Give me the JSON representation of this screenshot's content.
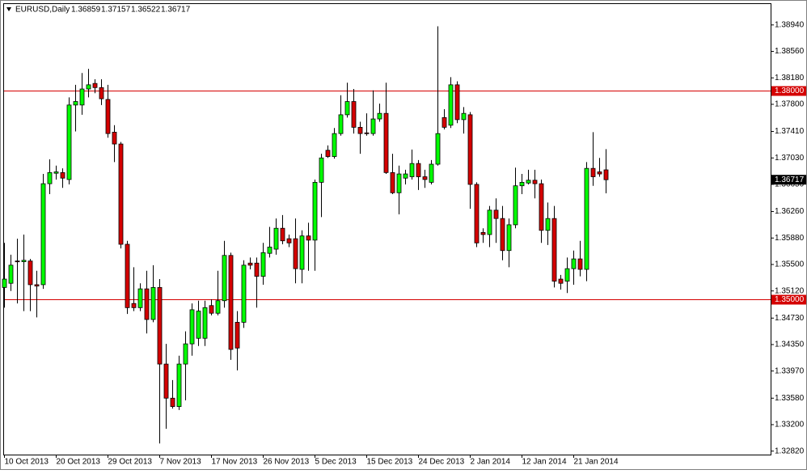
{
  "chart_data": {
    "type": "candlestick",
    "symbol": "EURUSD,Daily",
    "categories": [
      "10 Oct 2013",
      null,
      null,
      null,
      null,
      null,
      null,
      null,
      "20 Oct 2013",
      null,
      null,
      null,
      null,
      null,
      null,
      null,
      "29 Oct 2013",
      null,
      null,
      null,
      null,
      null,
      null,
      null,
      "7 Nov 2013",
      null,
      null,
      null,
      null,
      null,
      null,
      null,
      "17 Nov 2013",
      null,
      null,
      null,
      null,
      null,
      null,
      null,
      "26 Nov 2013",
      null,
      null,
      null,
      null,
      null,
      null,
      null,
      "5 Dec 2013",
      null,
      null,
      null,
      null,
      null,
      null,
      null,
      "15 Dec 2013",
      null,
      null,
      null,
      null,
      null,
      null,
      null,
      "24 Dec 2013",
      null,
      null,
      null,
      null,
      null,
      null,
      null,
      "2 Jan 2014",
      null,
      null,
      null,
      null,
      null,
      null,
      null,
      "12 Jan 2014",
      null,
      null,
      null,
      null,
      null,
      null,
      null,
      "21 Jan 2014",
      null,
      null,
      null,
      null,
      null
    ],
    "open": [
      1.3517,
      1.3523,
      1.3555,
      1.3554,
      1.3555,
      1.3521,
      1.3521,
      1.3666,
      1.3681,
      1.3682,
      1.3672,
      1.3779,
      1.3779,
      1.3802,
      1.381,
      1.3804,
      1.3787,
      1.374,
      1.3723,
      1.3579,
      1.3494,
      1.3488,
      1.3515,
      1.3471,
      1.3517,
      1.3407,
      1.3358,
      1.3346,
      1.3407,
      1.3436,
      1.3444,
      1.3444,
      1.3491,
      1.348,
      1.3498,
      1.3563,
      1.3467,
      1.3467,
      1.3552,
      1.3552,
      1.3533,
      1.3566,
      1.3572,
      1.3602,
      1.3587,
      1.3587,
      1.3543,
      1.3591,
      1.3585,
      1.3668,
      1.3714,
      1.3705,
      1.3738,
      1.3765,
      1.3784,
      1.3747,
      1.3739,
      1.3738,
      1.3759,
      1.3767,
      1.3682,
      1.3653,
      1.3674,
      1.3676,
      1.3695,
      1.3676,
      1.3668,
      1.3694,
      1.3761,
      1.375,
      1.3808,
      1.3758,
      1.3765,
      1.3665,
      1.3596,
      1.3593,
      1.3628,
      1.3616,
      1.357,
      1.3607,
      1.3663,
      1.3667,
      1.3671,
      1.3666,
      1.3599,
      1.3616,
      1.3529,
      1.3526,
      1.3544,
      1.3558,
      1.3543,
      1.3688,
      1.3683,
      1.36859
    ],
    "high": [
      1.3581,
      1.3564,
      1.3587,
      1.3593,
      1.3558,
      1.3541,
      1.368,
      1.3701,
      1.3692,
      1.3688,
      1.379,
      1.3808,
      1.3825,
      1.3831,
      1.3816,
      1.3816,
      1.3808,
      1.375,
      1.3726,
      1.3584,
      1.3546,
      1.3523,
      1.3541,
      1.3549,
      1.3529,
      1.3436,
      1.3384,
      1.3419,
      1.3454,
      1.3494,
      1.3498,
      1.3498,
      1.35,
      1.3541,
      1.3584,
      1.3567,
      1.3483,
      1.3556,
      1.356,
      1.356,
      1.3581,
      1.3604,
      1.3616,
      1.3621,
      1.3593,
      1.3616,
      1.3599,
      1.361,
      1.3672,
      1.3709,
      1.3721,
      1.3746,
      1.3793,
      1.3811,
      1.3802,
      1.3755,
      1.3767,
      1.38,
      1.3781,
      1.3811,
      1.3709,
      1.3692,
      1.3686,
      1.3715,
      1.37,
      1.3686,
      1.37,
      1.3892,
      1.3773,
      1.3819,
      1.3813,
      1.3776,
      1.3769,
      1.3668,
      1.3602,
      1.3634,
      1.3645,
      1.3634,
      1.3616,
      1.3689,
      1.368,
      1.3686,
      1.3686,
      1.3672,
      1.3639,
      1.3634,
      1.3535,
      1.356,
      1.357,
      1.3584,
      1.3697,
      1.374,
      1.3703,
      1.37157
    ],
    "low": [
      1.3488,
      1.3512,
      1.3494,
      1.3483,
      1.3483,
      1.3474,
      1.3515,
      1.3651,
      1.3672,
      1.366,
      1.3665,
      1.3741,
      1.3765,
      1.379,
      1.3796,
      1.3779,
      1.3732,
      1.3697,
      1.3573,
      1.3479,
      1.3483,
      1.3483,
      1.3451,
      1.3467,
      1.3293,
      1.3314,
      1.3343,
      1.3341,
      1.3355,
      1.3419,
      1.3433,
      1.3433,
      1.3477,
      1.3477,
      1.3488,
      1.3413,
      1.3398,
      1.3459,
      1.3543,
      1.3488,
      1.3521,
      1.356,
      1.3564,
      1.3579,
      1.3575,
      1.3523,
      1.3523,
      1.3541,
      1.3541,
      1.3618,
      1.3703,
      1.3702,
      1.3735,
      1.3761,
      1.3738,
      1.3709,
      1.3735,
      1.3735,
      1.3755,
      1.368,
      1.3651,
      1.3622,
      1.3665,
      1.3672,
      1.3657,
      1.366,
      1.3665,
      1.3692,
      1.3744,
      1.3746,
      1.3753,
      1.3738,
      1.363,
      1.3575,
      1.3581,
      1.3575,
      1.3581,
      1.3556,
      1.3546,
      1.3602,
      1.3651,
      1.3665,
      1.3645,
      1.3581,
      1.3578,
      1.3517,
      1.3514,
      1.3509,
      1.3521,
      1.3533,
      1.3526,
      1.3663,
      1.3676,
      1.36522
    ],
    "close": [
      1.3529,
      1.3549,
      1.3554,
      1.3556,
      1.3521,
      1.3519,
      1.3666,
      1.3682,
      1.3683,
      1.3674,
      1.3779,
      1.3784,
      1.3802,
      1.3808,
      1.3804,
      1.3788,
      1.3738,
      1.3723,
      1.3579,
      1.3488,
      1.3488,
      1.3515,
      1.3471,
      1.3517,
      1.3407,
      1.3358,
      1.3346,
      1.3407,
      1.3436,
      1.3485,
      1.3483,
      1.3488,
      1.348,
      1.3498,
      1.3563,
      1.3428,
      1.343,
      1.3549,
      1.3549,
      1.3533,
      1.3567,
      1.3575,
      1.3602,
      1.3584,
      1.3581,
      1.3544,
      1.3591,
      1.3585,
      1.3668,
      1.3703,
      1.3705,
      1.3738,
      1.3765,
      1.3784,
      1.3747,
      1.3738,
      1.3738,
      1.3759,
      1.3767,
      1.3682,
      1.3653,
      1.368,
      1.368,
      1.3695,
      1.3676,
      1.3672,
      1.3694,
      1.3738,
      1.3747,
      1.3808,
      1.3758,
      1.3767,
      1.3665,
      1.3581,
      1.3593,
      1.3628,
      1.3616,
      1.357,
      1.3607,
      1.3663,
      1.3668,
      1.3671,
      1.3666,
      1.3599,
      1.3616,
      1.3526,
      1.3523,
      1.3544,
      1.3558,
      1.3543,
      1.3688,
      1.3676,
      1.368,
      1.36717
    ],
    "up_color": "#00ff00",
    "down_color": "#d40000",
    "ylim": [
      1.3277,
      1.3924
    ],
    "yticks": [
      {
        "value": 1.3894,
        "label": "1.38940"
      },
      {
        "value": 1.3856,
        "label": "1.38560"
      },
      {
        "value": 1.3818,
        "label": "1.38180"
      },
      {
        "value": 1.378,
        "label": "1.37800"
      },
      {
        "value": 1.3741,
        "label": "1.37410"
      },
      {
        "value": 1.3703,
        "label": "1.37030"
      },
      {
        "value": 1.3665,
        "label": "1.36650"
      },
      {
        "value": 1.3626,
        "label": "1.36260"
      },
      {
        "value": 1.3588,
        "label": "1.35880"
      },
      {
        "value": 1.355,
        "label": "1.35500"
      },
      {
        "value": 1.3512,
        "label": "1.35120"
      },
      {
        "value": 1.3473,
        "label": "1.34730"
      },
      {
        "value": 1.3435,
        "label": "1.34350"
      },
      {
        "value": 1.3397,
        "label": "1.33970"
      },
      {
        "value": 1.3358,
        "label": "1.33580"
      },
      {
        "value": 1.332,
        "label": "1.33200"
      },
      {
        "value": 1.3282,
        "label": "1.32820"
      }
    ],
    "hlines": [
      {
        "value": 1.38,
        "label": "1.38000"
      },
      {
        "value": 1.35,
        "label": "1.35000"
      }
    ],
    "hline_color": "#d40000",
    "grid": false
  }
}
